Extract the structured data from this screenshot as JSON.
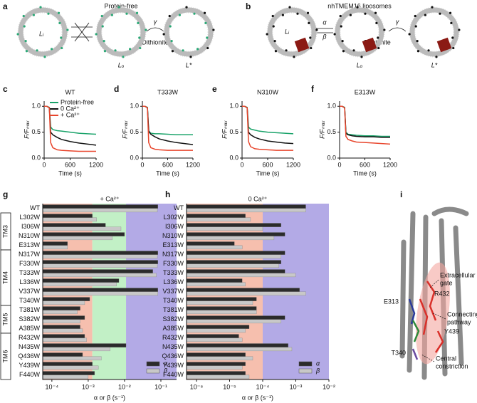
{
  "panel_labels": [
    "a",
    "b",
    "c",
    "d",
    "e",
    "f",
    "g",
    "h",
    "i"
  ],
  "diagram_a": {
    "title": "Protein-free",
    "inner": "Lᵢ",
    "outer": "Lₒ",
    "final": "L*",
    "rate": "γ",
    "reagent": "Dithionite"
  },
  "diagram_b": {
    "title": "nhTMEM16 liposomes",
    "inner": "Lᵢ",
    "outer": "Lₒ",
    "final": "L*",
    "forward": "α",
    "backward": "β",
    "rate": "γ",
    "reagent": "Dithionite"
  },
  "structure_i": {
    "gate": [
      "Extracellular",
      "gate"
    ],
    "pathway": [
      "Connecting",
      "pathway"
    ],
    "constriction": [
      "Central",
      "constriction"
    ],
    "residues": [
      "R432",
      "E313",
      "Y439",
      "T340"
    ]
  },
  "chart_data": [
    {
      "type": "line",
      "title": "WT",
      "title_color": "#111111",
      "xlabel": "Time (s)",
      "ylabel": "F/Fₘₐₓ",
      "legend": "upper right",
      "x": [
        0,
        60,
        120,
        150,
        200,
        300,
        400,
        600,
        800,
        1000,
        1200
      ],
      "xlim": [
        0,
        1200
      ],
      "xticks": [
        0,
        600,
        1200
      ],
      "ylim": [
        0,
        1.1
      ],
      "yticks": [
        {
          "value": 0,
          "label": "0.0"
        },
        {
          "value": 0.5,
          "label": "0.5"
        },
        {
          "value": 1,
          "label": "1.0"
        }
      ],
      "series": [
        {
          "name": "Protein-free",
          "color": "#1aa36a",
          "values": [
            1,
            1,
            0.98,
            0.6,
            0.55,
            0.53,
            0.52,
            0.5,
            0.48,
            0.47,
            0.46
          ]
        },
        {
          "name": "0 Ca²⁺",
          "color": "#111111",
          "values": [
            1,
            1,
            0.97,
            0.5,
            0.45,
            0.4,
            0.36,
            0.32,
            0.29,
            0.27,
            0.25
          ]
        },
        {
          "name": "+ Ca²⁺",
          "color": "#e8452c",
          "values": [
            1,
            1,
            0.97,
            0.3,
            0.2,
            0.16,
            0.15,
            0.14,
            0.13,
            0.13,
            0.13
          ]
        }
      ]
    },
    {
      "type": "line",
      "title": "T333W",
      "title_color": "#3a3a9a",
      "xlabel": "Time (s)",
      "ylabel": "F/Fₘₐₓ",
      "x": [
        0,
        60,
        120,
        150,
        200,
        300,
        400,
        600,
        800,
        1000,
        1200
      ],
      "xlim": [
        0,
        1200
      ],
      "xticks": [
        0,
        600,
        1200
      ],
      "ylim": [
        0,
        1.1
      ],
      "yticks": [
        {
          "value": 0,
          "label": "0.0"
        },
        {
          "value": 0.5,
          "label": "0.5"
        },
        {
          "value": 1,
          "label": "1.0"
        }
      ],
      "series": [
        {
          "color": "#1aa36a",
          "values": [
            1,
            1,
            0.98,
            0.52,
            0.48,
            0.47,
            0.47,
            0.46,
            0.45,
            0.45,
            0.45
          ]
        },
        {
          "color": "#111111",
          "values": [
            1,
            1,
            0.97,
            0.52,
            0.46,
            0.41,
            0.37,
            0.33,
            0.3,
            0.28,
            0.26
          ]
        },
        {
          "color": "#e8452c",
          "values": [
            1,
            1,
            0.97,
            0.3,
            0.2,
            0.17,
            0.16,
            0.15,
            0.15,
            0.15,
            0.15
          ]
        }
      ]
    },
    {
      "type": "line",
      "title": "N310W",
      "title_color": "#1b9e5a",
      "xlabel": "Time (s)",
      "ylabel": "F/Fₘₐₓ",
      "x": [
        0,
        60,
        120,
        150,
        200,
        300,
        400,
        600,
        800,
        1000,
        1200
      ],
      "xlim": [
        0,
        1200
      ],
      "xticks": [
        0,
        600,
        1200
      ],
      "ylim": [
        0,
        1.1
      ],
      "yticks": [
        {
          "value": 0,
          "label": "0.0"
        },
        {
          "value": 0.5,
          "label": "0.5"
        },
        {
          "value": 1,
          "label": "1.0"
        }
      ],
      "series": [
        {
          "color": "#1aa36a",
          "values": [
            1,
            1,
            0.98,
            0.6,
            0.56,
            0.54,
            0.52,
            0.5,
            0.49,
            0.48,
            0.47
          ]
        },
        {
          "color": "#111111",
          "values": [
            1,
            1,
            0.97,
            0.5,
            0.45,
            0.4,
            0.37,
            0.33,
            0.31,
            0.29,
            0.28
          ]
        },
        {
          "color": "#e8452c",
          "values": [
            1,
            1,
            0.97,
            0.32,
            0.22,
            0.18,
            0.17,
            0.16,
            0.15,
            0.15,
            0.15
          ]
        }
      ]
    },
    {
      "type": "line",
      "title": "E313W",
      "title_color": "#d83b2b",
      "xlabel": "Time (s)",
      "ylabel": "F/Fₘₐₓ",
      "x": [
        0,
        60,
        120,
        150,
        200,
        300,
        400,
        600,
        800,
        1000,
        1200
      ],
      "xlim": [
        0,
        1200
      ],
      "xticks": [
        0,
        600,
        1200
      ],
      "ylim": [
        0,
        1.1
      ],
      "yticks": [
        {
          "value": 0,
          "label": "0.0"
        },
        {
          "value": 0.5,
          "label": "0.5"
        },
        {
          "value": 1,
          "label": "1.0"
        }
      ],
      "series": [
        {
          "color": "#1aa36a",
          "values": [
            1,
            1,
            0.98,
            0.5,
            0.46,
            0.45,
            0.44,
            0.43,
            0.43,
            0.42,
            0.42
          ]
        },
        {
          "color": "#111111",
          "values": [
            1,
            1,
            0.97,
            0.48,
            0.45,
            0.43,
            0.42,
            0.41,
            0.41,
            0.4,
            0.4
          ]
        },
        {
          "color": "#e8452c",
          "values": [
            1,
            1,
            0.97,
            0.42,
            0.36,
            0.33,
            0.31,
            0.3,
            0.29,
            0.28,
            0.27
          ]
        }
      ]
    },
    {
      "type": "barh",
      "title": "+ Ca²⁺",
      "xlabel": "α or β (s⁻¹)",
      "log_x": true,
      "legend": "lower right",
      "categories": [
        "WT",
        "L302W",
        "I306W",
        "N310W",
        "E313W",
        "N317W",
        "F330W",
        "T333W",
        "L336W",
        "V337W",
        "T340W",
        "T381W",
        "S382W",
        "A385W",
        "R432W",
        "N435W",
        "Q436W",
        "Y439W",
        "F440W"
      ],
      "groups": [
        {
          "label": "TM3",
          "from": 1,
          "to": 4
        },
        {
          "label": "TM4",
          "from": 5,
          "to": 10
        },
        {
          "label": "TM5",
          "from": 11,
          "to": 13
        },
        {
          "label": "TM6",
          "from": 14,
          "to": 18
        }
      ],
      "xlim": [
        5.6e-05,
        0.27
      ],
      "xticks": [
        {
          "value": 0.0001,
          "label": "10⁻⁴"
        },
        {
          "value": 0.001,
          "label": "10⁻³"
        },
        {
          "value": 0.01,
          "label": "10⁻²"
        },
        {
          "value": 0.1,
          "label": "10⁻¹"
        }
      ],
      "regions": [
        {
          "from": 5.6e-05,
          "to": 0.0013,
          "color": "#f6bfae"
        },
        {
          "from": 0.0013,
          "to": 0.011,
          "color": "#c2f0c6"
        },
        {
          "from": 0.011,
          "to": 0.27,
          "color": "#b3aae6"
        }
      ],
      "series": [
        {
          "name": "α",
          "color": "#2b2b2b",
          "values": [
            0.083,
            0.0013,
            0.003,
            0.01,
            0.00027,
            0.083,
            0.083,
            0.06,
            0.007,
            0.083,
            0.0011,
            0.0006,
            0.0008,
            0.0006,
            0.0008,
            0.011,
            0.0007,
            0.0013,
            0.0015
          ]
        },
        {
          "name": "β",
          "color": "#c8c8c8",
          "values": [
            0.08,
            0.0017,
            0.008,
            0.0046,
            0.00027,
            0.08,
            0.08,
            0.075,
            0.006,
            0.083,
            0.0008,
            0.0005,
            0.0006,
            0.0007,
            0.0009,
            0.004,
            0.0023,
            0.0019,
            0.001
          ]
        }
      ]
    },
    {
      "type": "barh",
      "title": "0 Ca²⁺",
      "xlabel": "α or β (s⁻¹)",
      "log_x": true,
      "legend": "lower right",
      "categories": [
        "WT",
        "L302W",
        "I306W",
        "N310W",
        "E313W",
        "N317W",
        "F330W",
        "T333W",
        "L336W",
        "V337W",
        "T340W",
        "T381W",
        "S382W",
        "A385W",
        "R432W",
        "N435W",
        "Q436W",
        "Y439W",
        "F440W"
      ],
      "xlim": [
        5e-07,
        0.01
      ],
      "xticks": [
        {
          "value": 1e-06,
          "label": "10⁻⁶"
        },
        {
          "value": 1e-05,
          "label": "10⁻⁵"
        },
        {
          "value": 0.0001,
          "label": "10⁻⁴"
        },
        {
          "value": 0.001,
          "label": "10⁻³"
        },
        {
          "value": 0.01,
          "label": "10⁻²"
        }
      ],
      "regions": [
        {
          "from": 5e-07,
          "to": 0.0001,
          "color": "#f6bfae"
        },
        {
          "from": 0.0001,
          "to": 0.01,
          "color": "#b3aae6"
        }
      ],
      "series": [
        {
          "name": "α",
          "color": "#2b2b2b",
          "values": [
            0.002,
            3e-05,
            0.00036,
            0.00047,
            1.4e-05,
            0.00047,
            0.00036,
            0.00047,
            2.4e-05,
            0.0013,
            6.5e-05,
            6.5e-05,
            0.00047,
            3.9e-05,
            1.9e-05,
            0.00059,
            3e-05,
            3e-05,
            3e-05
          ]
        },
        {
          "name": "β",
          "color": "#c8c8c8",
          "values": [
            0.002,
            4.3e-05,
            0.0001,
            0.00022,
            2.4e-05,
            0.00036,
            0.00031,
            0.00098,
            3e-05,
            0.002,
            5e-05,
            6.5e-05,
            0.00036,
            3e-05,
            2.4e-05,
            0.00076,
            5e-05,
            2.4e-05,
            3.9e-05
          ]
        }
      ]
    }
  ]
}
